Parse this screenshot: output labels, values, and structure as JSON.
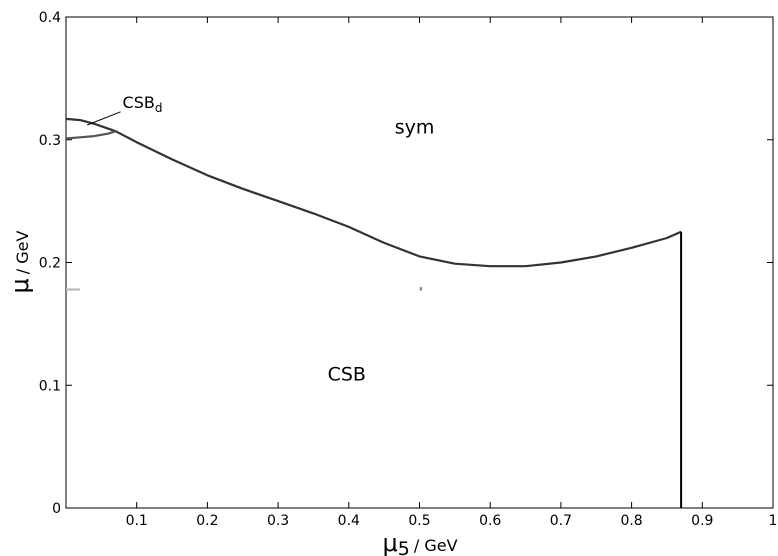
{
  "chart_data": {
    "type": "line",
    "title": "",
    "xlabel": {
      "symbol": "μ",
      "subscript": "5",
      "unit": "/ GeV"
    },
    "ylabel": {
      "symbol": "μ",
      "unit": "/ GeV"
    },
    "xlim": [
      0,
      1
    ],
    "ylim": [
      0,
      0.4
    ],
    "xticks": [
      {
        "value": 0.1,
        "label": "0.1"
      },
      {
        "value": 0.2,
        "label": "0.2"
      },
      {
        "value": 0.3,
        "label": "0.3"
      },
      {
        "value": 0.4,
        "label": "0.4"
      },
      {
        "value": 0.5,
        "label": "0.5"
      },
      {
        "value": 0.6,
        "label": "0.6"
      },
      {
        "value": 0.7,
        "label": "0.7"
      },
      {
        "value": 0.8,
        "label": "0.8"
      },
      {
        "value": 0.9,
        "label": "0.9"
      },
      {
        "value": 1.0,
        "label": "1"
      }
    ],
    "yticks": [
      {
        "value": 0,
        "label": "0"
      },
      {
        "value": 0.1,
        "label": "0.1"
      },
      {
        "value": 0.2,
        "label": "0.2"
      },
      {
        "value": 0.3,
        "label": "0.3"
      },
      {
        "value": 0.4,
        "label": "0.4"
      }
    ],
    "grid": false,
    "series": [
      {
        "color": "#333333",
        "x": [
          0.0,
          0.02,
          0.04,
          0.06,
          0.07,
          0.1,
          0.15,
          0.2,
          0.25,
          0.3,
          0.35,
          0.4,
          0.45,
          0.5,
          0.55,
          0.6,
          0.65,
          0.7,
          0.75,
          0.8,
          0.85,
          0.87
        ],
        "y": [
          0.317,
          0.316,
          0.313,
          0.309,
          0.307,
          0.298,
          0.284,
          0.271,
          0.26,
          0.25,
          0.24,
          0.229,
          0.216,
          0.205,
          0.199,
          0.197,
          0.197,
          0.2,
          0.205,
          0.212,
          0.22,
          0.225
        ]
      },
      {
        "color": "#555555",
        "x": [
          0.0,
          0.02,
          0.04,
          0.06,
          0.07
        ],
        "y": [
          0.301,
          0.302,
          0.303,
          0.305,
          0.307
        ]
      },
      {
        "color": "#000000",
        "x": [
          0.87,
          0.87
        ],
        "y": [
          0.225,
          0.0
        ]
      },
      {
        "color": "#bbbbbb",
        "x": [
          0.0,
          0.02
        ],
        "y": [
          0.178,
          0.178
        ]
      },
      {
        "color": "#888888",
        "x": [
          0.502,
          0.502
        ],
        "y": [
          0.177,
          0.18
        ]
      }
    ],
    "annotations": [
      {
        "text": "sym",
        "x": 0.465,
        "y": 0.305
      },
      {
        "text": "CSB",
        "x": 0.37,
        "y": 0.104
      },
      {
        "text": "CSB",
        "subscript": "d",
        "x": 0.08,
        "y": 0.326,
        "arrow_to": [
          0.03,
          0.312
        ]
      }
    ]
  }
}
